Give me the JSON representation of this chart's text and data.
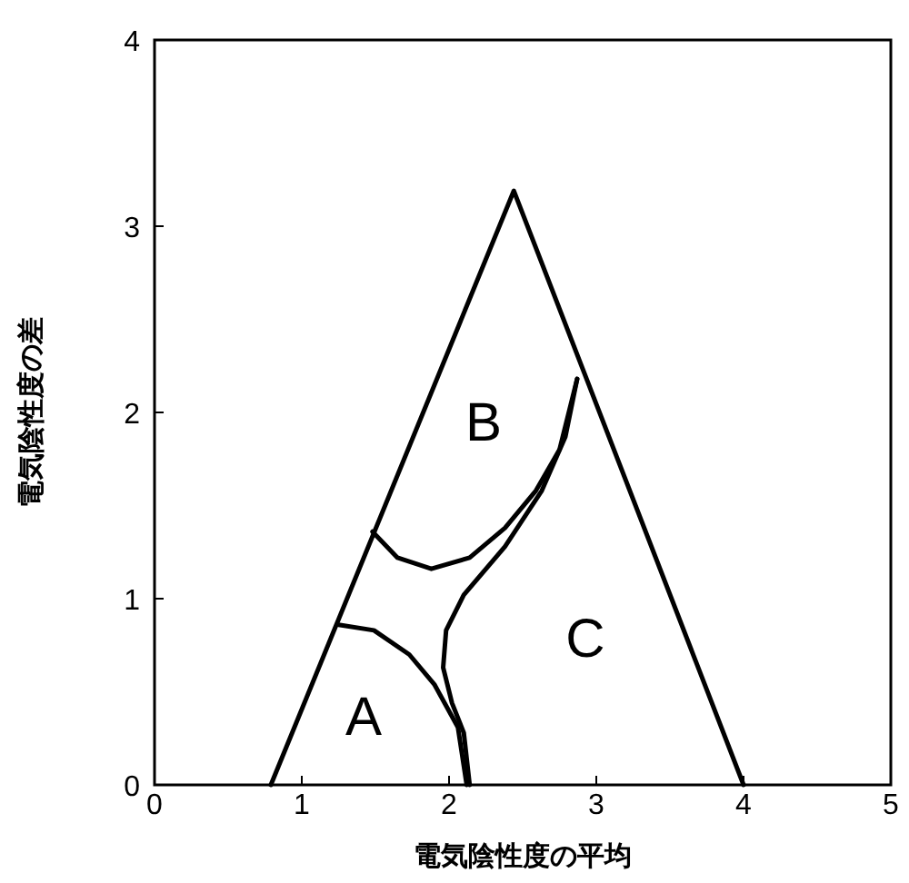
{
  "chart_data": {
    "type": "line",
    "xlabel": "電気陰性度の平均",
    "ylabel": "電気陰性度の差",
    "xlim": [
      0,
      5
    ],
    "ylim": [
      0,
      4
    ],
    "xticks": [
      0,
      1,
      2,
      3,
      4,
      5
    ],
    "yticks": [
      0,
      1,
      2,
      3,
      4
    ],
    "grid": false,
    "marker": "none",
    "line_style": "solid",
    "series": [
      {
        "color": "#000000",
        "x": [
          0.79,
          2.44,
          4.0
        ],
        "values": [
          0,
          3.19,
          0
        ]
      },
      {
        "color": "#000000",
        "x": [
          1.48,
          1.65,
          1.88,
          2.14,
          2.38,
          2.59,
          2.75,
          2.87
        ],
        "values": [
          1.36,
          1.22,
          1.16,
          1.22,
          1.38,
          1.58,
          1.8,
          2.18
        ]
      },
      {
        "color": "#000000",
        "x": [
          2.87,
          2.79,
          2.63,
          2.38,
          2.1,
          1.98,
          1.96,
          2.02,
          2.1,
          2.14
        ],
        "values": [
          2.18,
          1.87,
          1.58,
          1.28,
          1.02,
          0.83,
          0.63,
          0.44,
          0.28,
          0
        ]
      },
      {
        "color": "#000000",
        "x": [
          1.25,
          1.49,
          1.73,
          1.9,
          2.06,
          2.12
        ],
        "values": [
          0.86,
          0.83,
          0.7,
          0.54,
          0.31,
          0
        ]
      }
    ],
    "annotations": [
      "A",
      "B",
      "C"
    ]
  }
}
